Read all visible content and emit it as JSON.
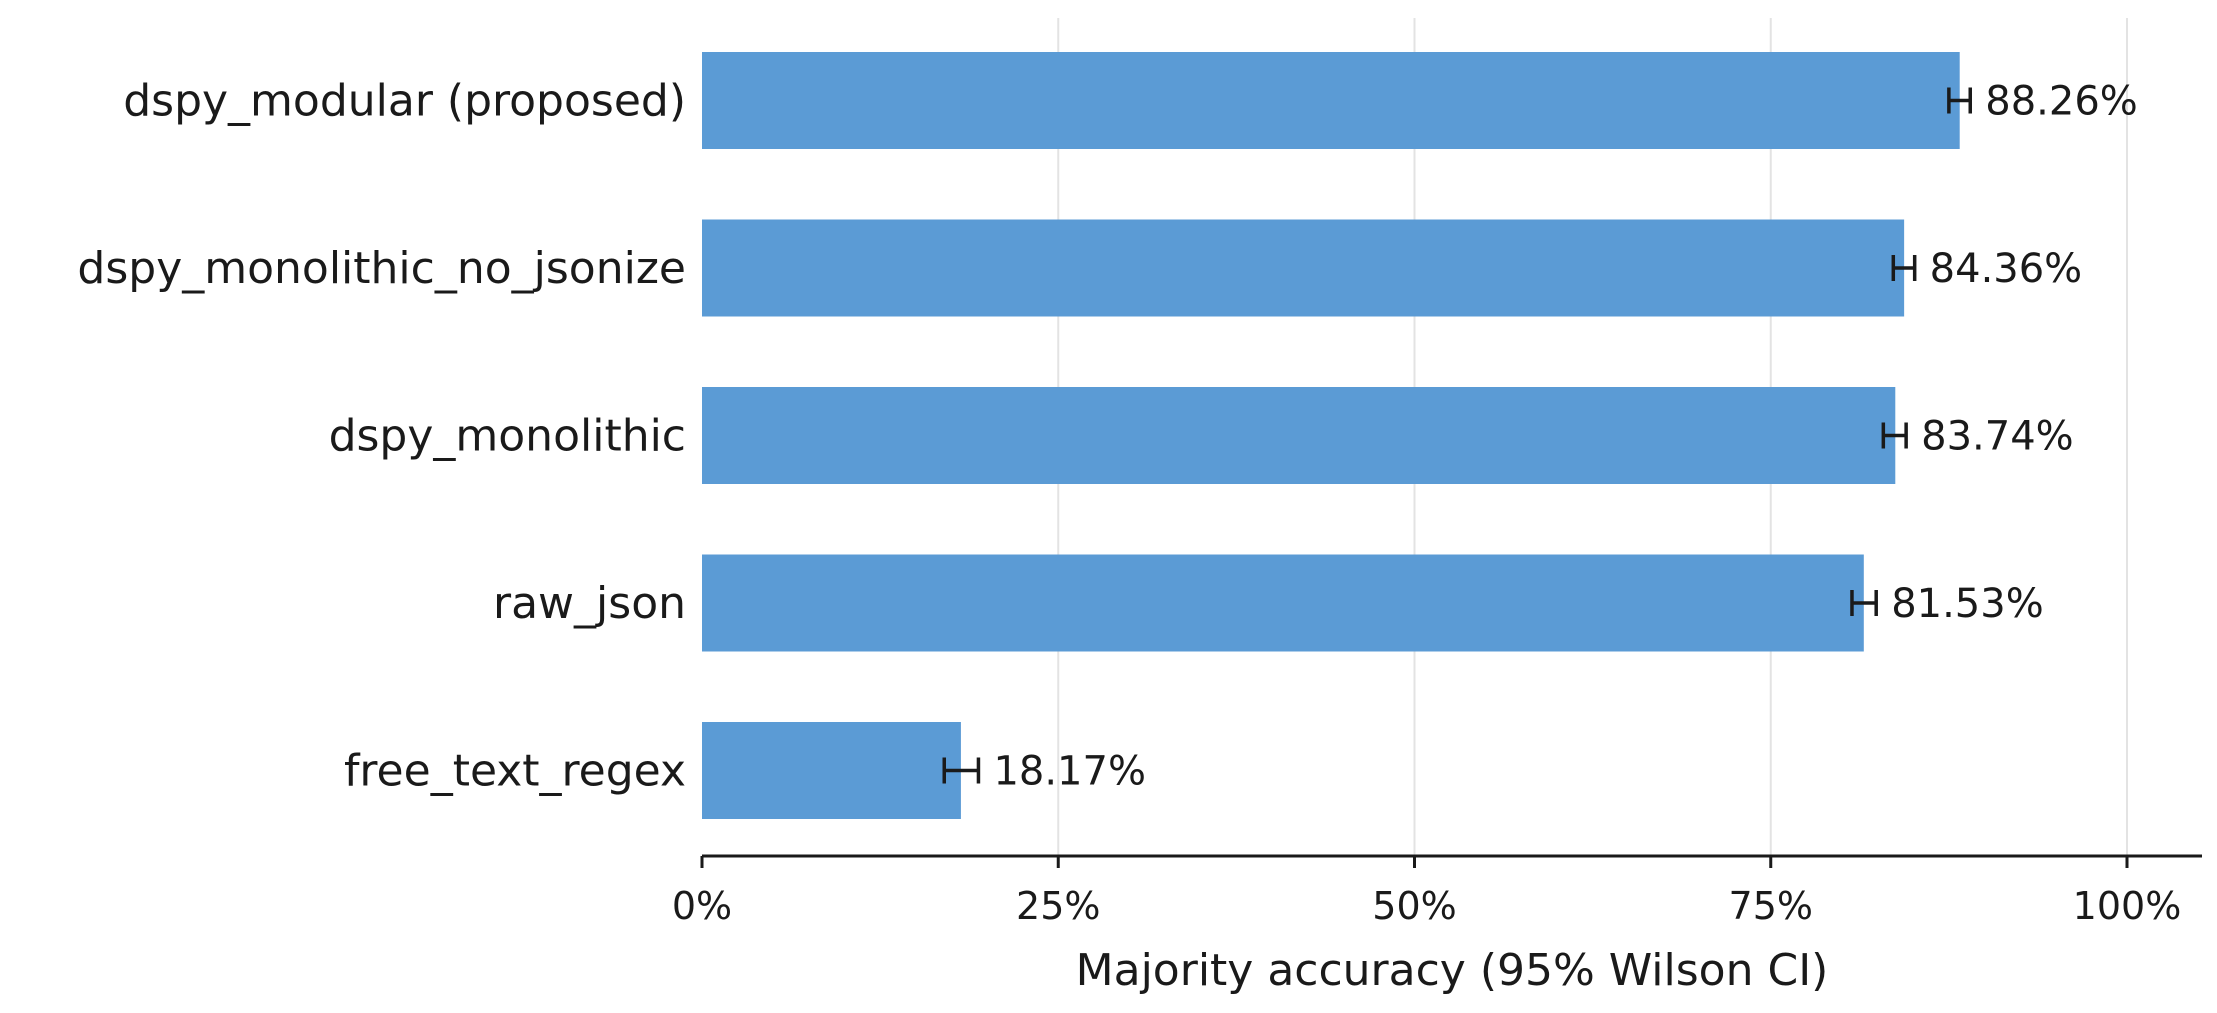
{
  "chart_data": {
    "type": "bar",
    "orientation": "horizontal",
    "categories": [
      "dspy_modular (proposed)",
      "dspy_monolithic_no_jsonize",
      "dspy_monolithic",
      "raw_json",
      "free_text_regex"
    ],
    "values": [
      88.26,
      84.36,
      83.74,
      81.53,
      18.17
    ],
    "value_labels": [
      "88.26%",
      "84.36%",
      "83.74%",
      "81.53%",
      "18.17%"
    ],
    "error_bars": [
      {
        "low": 87.5,
        "high": 89.0
      },
      {
        "low": 83.6,
        "high": 85.1
      },
      {
        "low": 82.9,
        "high": 84.5
      },
      {
        "low": 80.7,
        "high": 82.4
      },
      {
        "low": 17.0,
        "high": 19.4
      }
    ],
    "xlabel": "Majority accuracy (95% Wilson CI)",
    "ylabel": "",
    "xlim": [
      0,
      100
    ],
    "xticks": [
      0,
      25,
      50,
      75,
      100
    ],
    "xtick_labels": [
      "0%",
      "25%",
      "50%",
      "75%",
      "100%"
    ],
    "grid": "vertical",
    "legend": "none",
    "bar_color": "#5b9bd5",
    "grid_color": "#e3e3e3",
    "axis_color": "#1a1a1a"
  }
}
